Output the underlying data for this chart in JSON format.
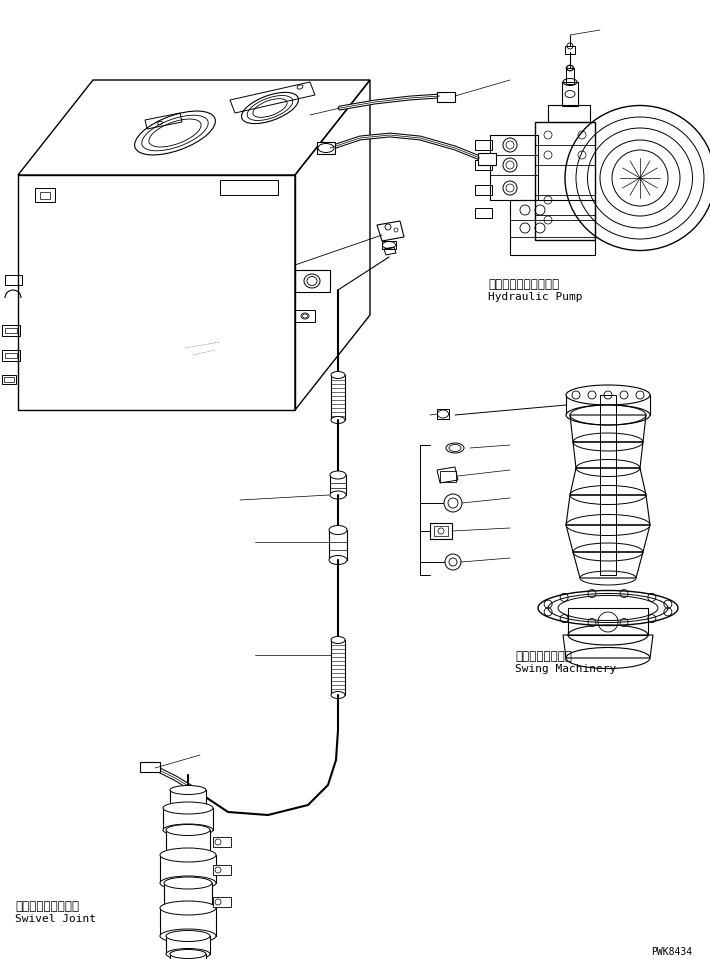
{
  "background_color": "#ffffff",
  "line_color": "#000000",
  "text_color": "#000000",
  "label_hydraulic_pump_jp": "ハイドロリックポンプ",
  "label_hydraulic_pump_en": "Hydraulic Pump",
  "label_swing_jp": "スイングマシナリ",
  "label_swing_en": "Swing Machinery",
  "label_swivel_jp": "スイベルジョイント",
  "label_swivel_en": "Swivel Joint",
  "watermark": "PWK8434",
  "font_size_label": 8,
  "font_size_watermark": 7
}
